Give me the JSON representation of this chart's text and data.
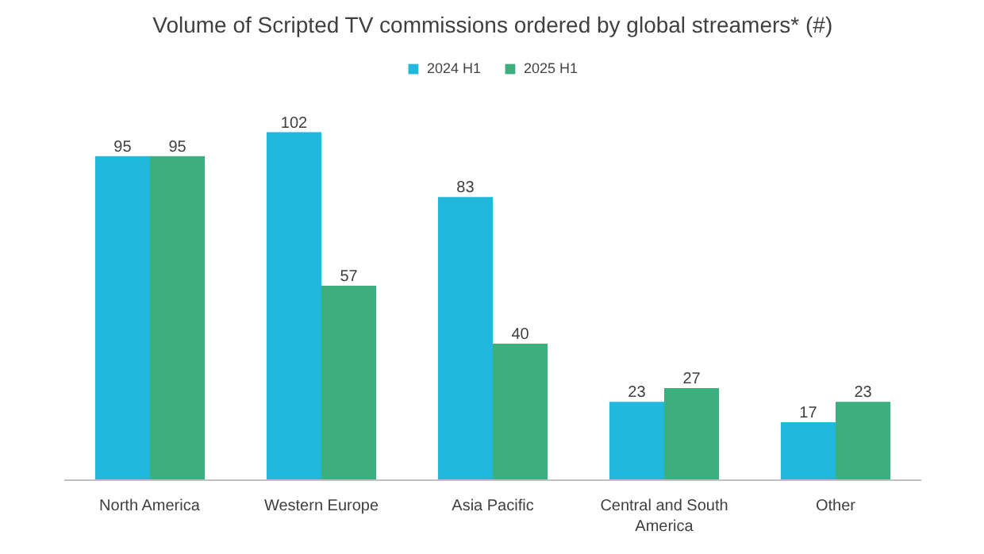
{
  "chart_data": {
    "type": "bar",
    "title": "Volume of Scripted TV commissions ordered by global streamers* (#)",
    "categories": [
      "North America",
      "Western Europe",
      "Asia Pacific",
      "Central and South America",
      "Other"
    ],
    "series": [
      {
        "name": "2024 H1",
        "color": "#22b8dc",
        "values": [
          95,
          102,
          83,
          23,
          17
        ]
      },
      {
        "name": "2025 H1",
        "color": "#3daf7f",
        "values": [
          95,
          57,
          40,
          27,
          23
        ]
      }
    ],
    "data_labels": true,
    "legend": "top",
    "grid": false
  }
}
